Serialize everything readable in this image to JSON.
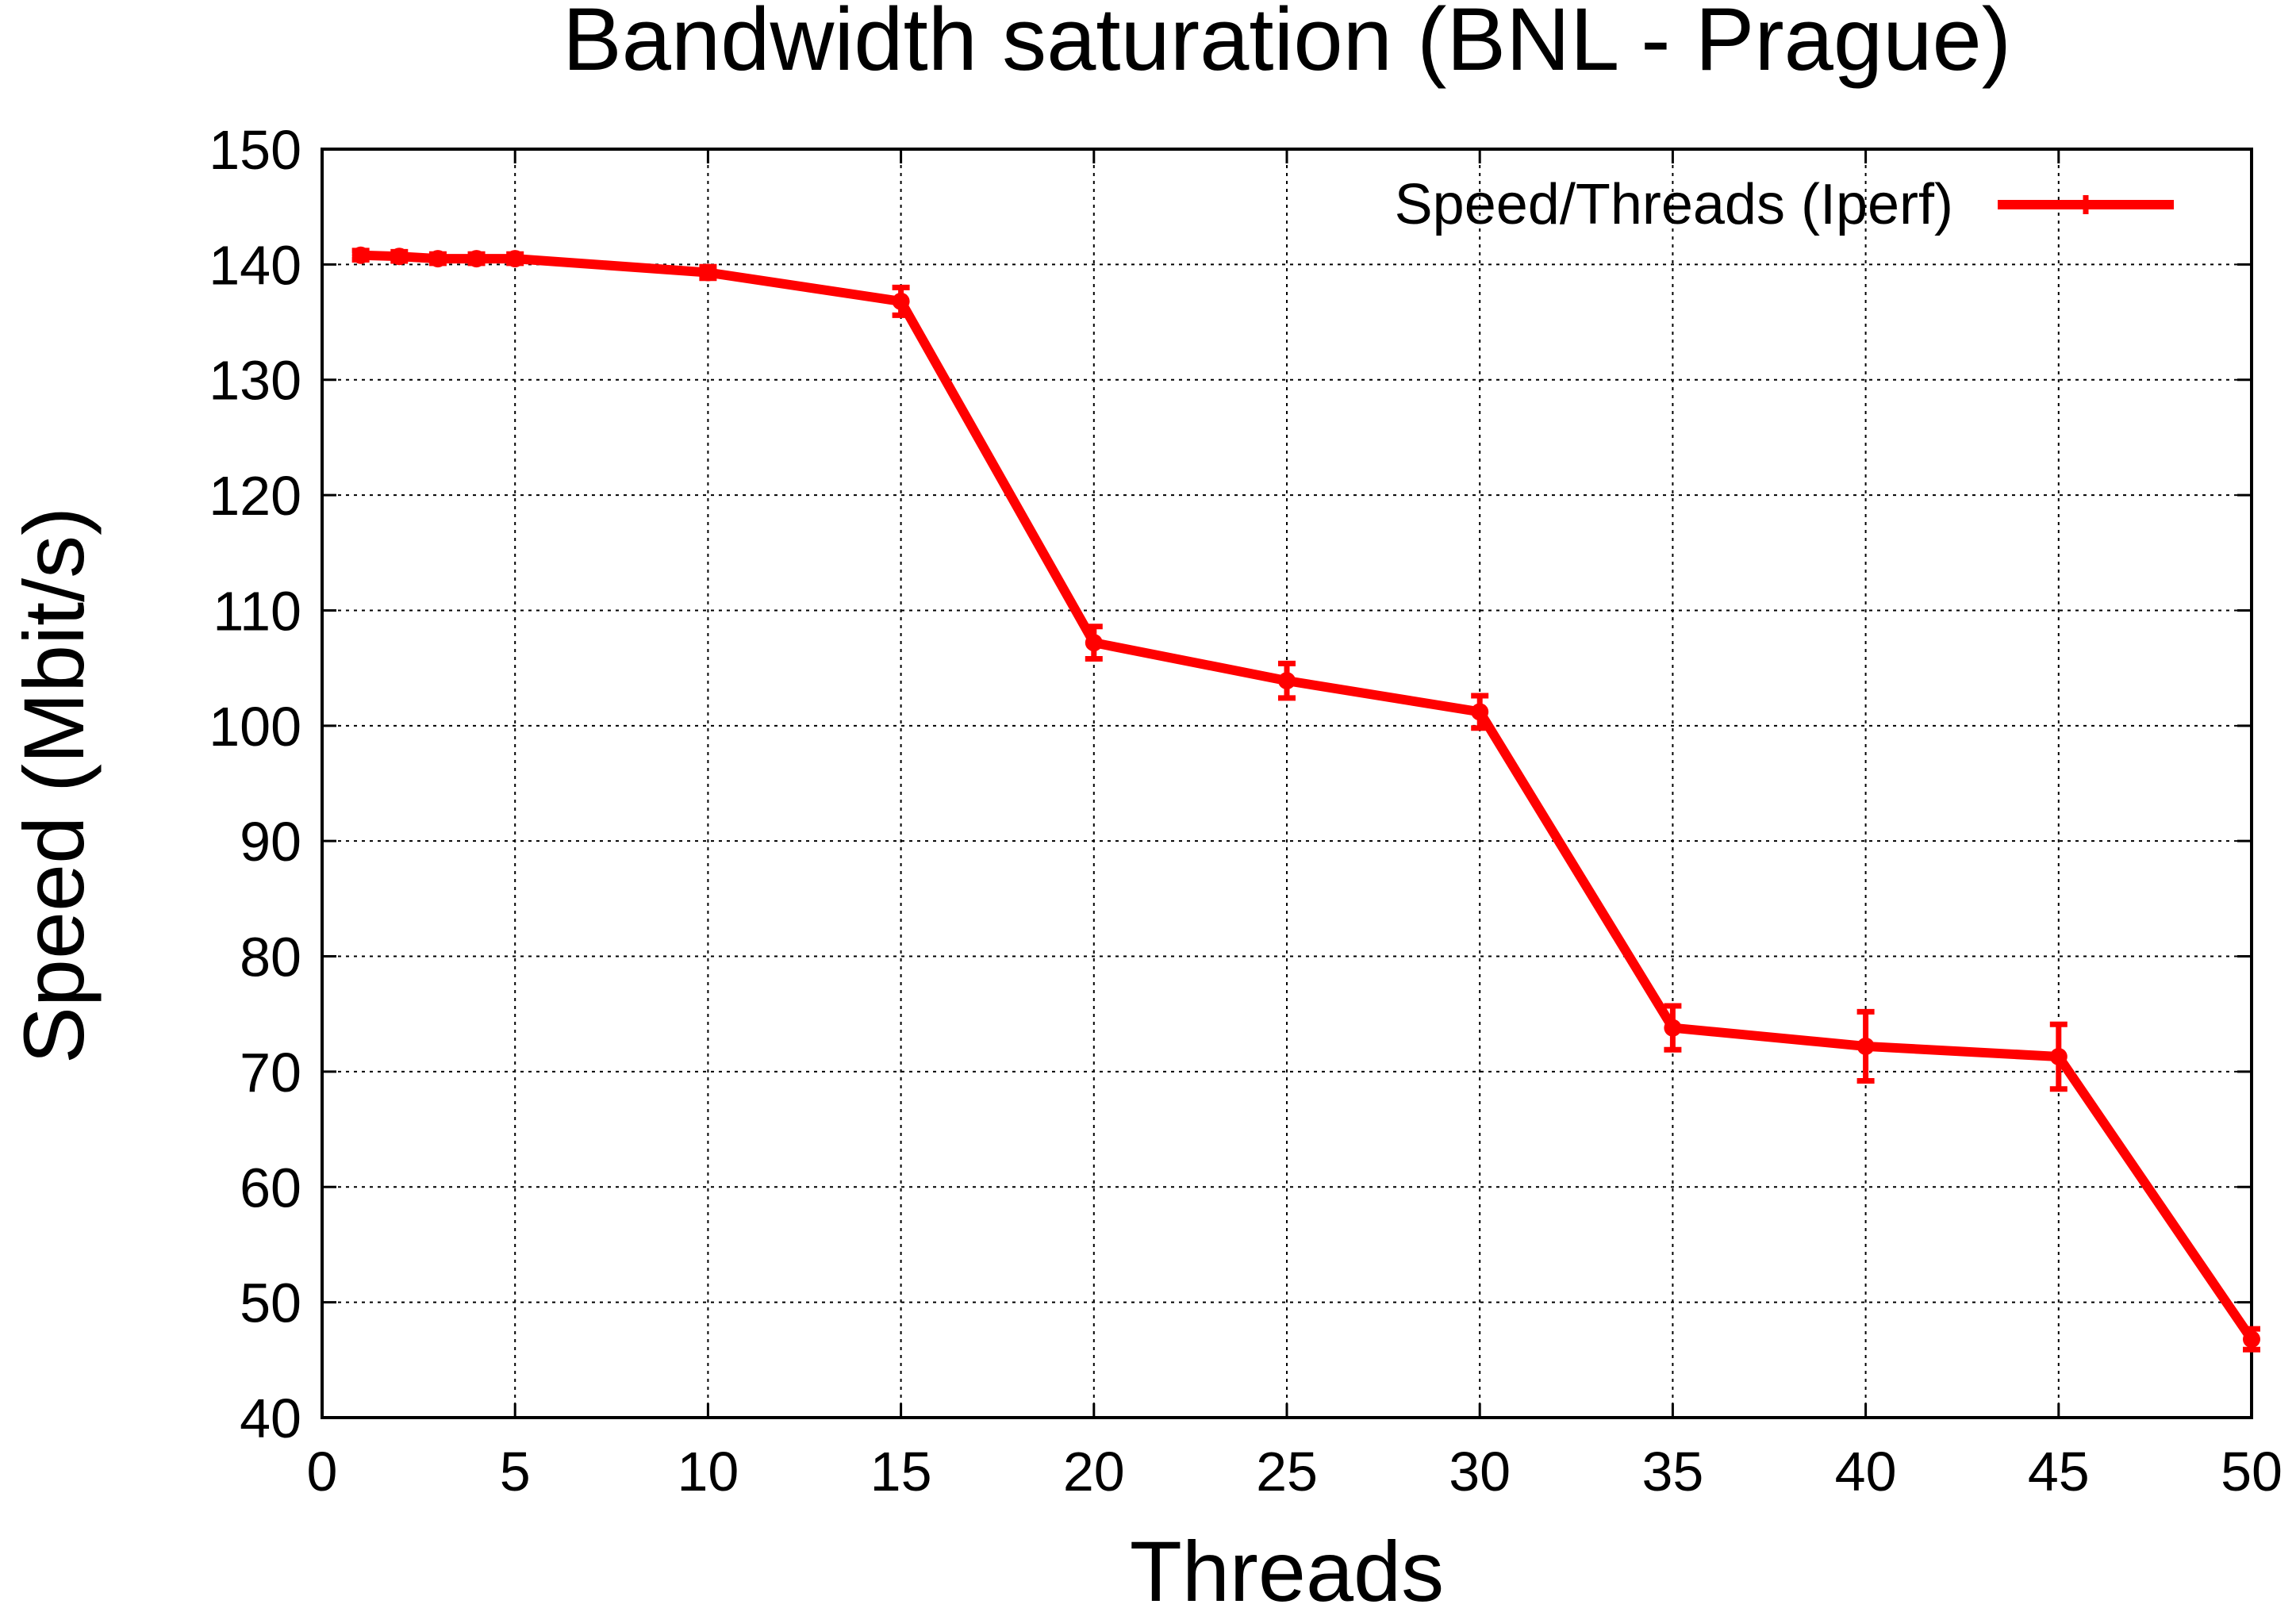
{
  "chart_data": {
    "type": "line",
    "title": "Bandwidth saturation (BNL - Prague)",
    "xlabel": "Threads",
    "ylabel": "Speed (Mbit/s)",
    "xlim": [
      0,
      50
    ],
    "ylim": [
      40,
      150
    ],
    "xticks": [
      0,
      5,
      10,
      15,
      20,
      25,
      30,
      35,
      40,
      45,
      50
    ],
    "yticks": [
      40,
      50,
      60,
      70,
      80,
      90,
      100,
      110,
      120,
      130,
      140,
      150
    ],
    "grid": true,
    "legend_position": "top-right",
    "series": [
      {
        "name": "Speed/Threads (Iperf)",
        "color": "#ff0000",
        "x": [
          1,
          2,
          3,
          4,
          5,
          10,
          15,
          20,
          25,
          30,
          35,
          40,
          45,
          50
        ],
        "y": [
          140.8,
          140.7,
          140.5,
          140.5,
          140.5,
          139.3,
          136.8,
          107.2,
          103.9,
          101.2,
          73.8,
          72.2,
          71.3,
          46.8
        ],
        "yerr": [
          0.4,
          0.4,
          0.4,
          0.4,
          0.4,
          0.5,
          1.2,
          1.4,
          1.5,
          1.4,
          1.9,
          3.0,
          2.8,
          0.9
        ]
      }
    ]
  }
}
